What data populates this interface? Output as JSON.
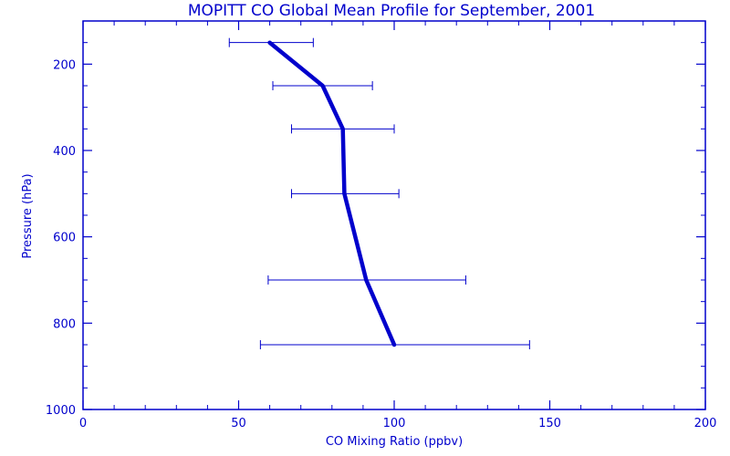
{
  "chart_data": {
    "type": "line",
    "title": "MOPITT CO Global Mean Profile for September, 2001",
    "xlabel": "CO Mixing Ratio (ppbv)",
    "ylabel": "Pressure (hPa)",
    "xlim": [
      0,
      200
    ],
    "ylim": [
      1000,
      100
    ],
    "y_reversed": true,
    "x_ticks": [
      0,
      50,
      100,
      150,
      200
    ],
    "y_ticks": [
      200,
      400,
      600,
      800,
      1000
    ],
    "grid": false,
    "series": [
      {
        "points": [
          {
            "x": 60,
            "y": 150,
            "xerr_low": 47,
            "xerr_high": 74
          },
          {
            "x": 77,
            "y": 250,
            "xerr_low": 61,
            "xerr_high": 93
          },
          {
            "x": 83.5,
            "y": 350,
            "xerr_low": 67,
            "xerr_high": 100
          },
          {
            "x": 84,
            "y": 500,
            "xerr_low": 67,
            "xerr_high": 101.5
          },
          {
            "x": 91,
            "y": 700,
            "xerr_low": 59.5,
            "xerr_high": 123
          },
          {
            "x": 100,
            "y": 850,
            "xerr_low": 57,
            "xerr_high": 143.5
          }
        ]
      }
    ],
    "colors": {
      "axis": "#0000cc",
      "line": "#0000cc",
      "background": "#ffffff"
    }
  }
}
